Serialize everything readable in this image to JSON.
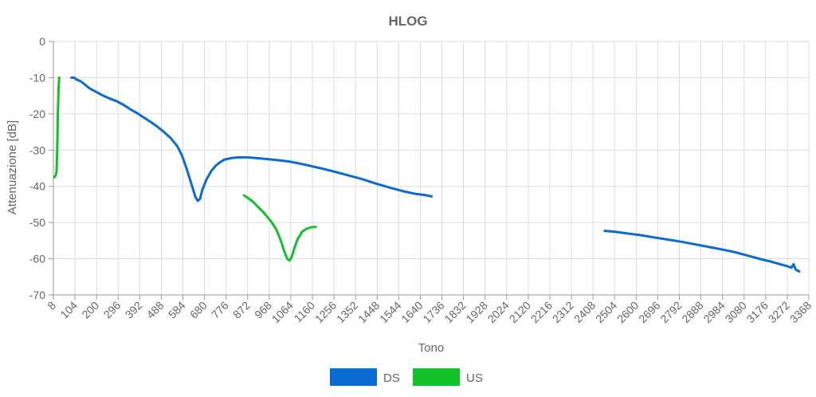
{
  "chart_data": {
    "type": "line",
    "title": "HLOG",
    "xlabel": "Tono",
    "ylabel": "Attenuazione [dB]",
    "xlim": [
      8,
      3368
    ],
    "ylim": [
      -70,
      0
    ],
    "x_ticks": [
      "8",
      "104",
      "200",
      "296",
      "392",
      "488",
      "584",
      "680",
      "776",
      "872",
      "968",
      "1064",
      "1160",
      "1256",
      "1352",
      "1448",
      "1544",
      "1640",
      "1736",
      "1832",
      "1928",
      "2024",
      "2120",
      "2216",
      "2312",
      "2408",
      "2504",
      "2600",
      "2696",
      "2792",
      "2888",
      "2984",
      "3080",
      "3176",
      "3272",
      "3368"
    ],
    "y_ticks": [
      "0",
      "-10",
      "-20",
      "-30",
      "-40",
      "-50",
      "-60",
      "-70"
    ],
    "grid": true,
    "legend": "bottom",
    "series": [
      {
        "name": "DS",
        "color": "#0a6cd0",
        "segments": [
          [
            [
              88,
              -10
            ],
            [
              100,
              -10
            ],
            [
              110,
              -10.5
            ],
            [
              130,
              -11
            ],
            [
              150,
              -12
            ],
            [
              170,
              -13
            ],
            [
              200,
              -14
            ],
            [
              230,
              -15
            ],
            [
              260,
              -15.8
            ],
            [
              290,
              -16.5
            ],
            [
              320,
              -17.5
            ],
            [
              350,
              -18.7
            ],
            [
              380,
              -19.8
            ],
            [
              410,
              -21
            ],
            [
              440,
              -22.2
            ],
            [
              470,
              -23.5
            ],
            [
              500,
              -25
            ],
            [
              530,
              -26.7
            ],
            [
              560,
              -29
            ],
            [
              580,
              -31.5
            ],
            [
              600,
              -35
            ],
            [
              620,
              -39
            ],
            [
              640,
              -43
            ],
            [
              650,
              -44
            ],
            [
              660,
              -43.5
            ],
            [
              670,
              -41
            ],
            [
              690,
              -38
            ],
            [
              710,
              -35.8
            ],
            [
              730,
              -34.3
            ],
            [
              750,
              -33.3
            ],
            [
              770,
              -32.6
            ],
            [
              800,
              -32.2
            ],
            [
              830,
              -32
            ],
            [
              870,
              -32
            ],
            [
              910,
              -32.2
            ],
            [
              960,
              -32.5
            ],
            [
              1010,
              -32.8
            ],
            [
              1060,
              -33.2
            ],
            [
              1110,
              -33.8
            ],
            [
              1160,
              -34.5
            ],
            [
              1210,
              -35.2
            ],
            [
              1260,
              -36
            ],
            [
              1320,
              -37
            ],
            [
              1380,
              -38
            ],
            [
              1440,
              -39.2
            ],
            [
              1500,
              -40.3
            ],
            [
              1560,
              -41.3
            ],
            [
              1620,
              -42.1
            ],
            [
              1660,
              -42.4
            ],
            [
              1690,
              -42.8
            ]
          ],
          [
            [
              2460,
              -52.3
            ],
            [
              2500,
              -52.5
            ],
            [
              2560,
              -53
            ],
            [
              2620,
              -53.5
            ],
            [
              2680,
              -54.1
            ],
            [
              2740,
              -54.7
            ],
            [
              2800,
              -55.3
            ],
            [
              2860,
              -56
            ],
            [
              2920,
              -56.7
            ],
            [
              2980,
              -57.4
            ],
            [
              3040,
              -58.2
            ],
            [
              3100,
              -59.2
            ],
            [
              3160,
              -60.2
            ],
            [
              3200,
              -60.8
            ],
            [
              3240,
              -61.5
            ],
            [
              3270,
              -62
            ],
            [
              3290,
              -62.5
            ],
            [
              3300,
              -61.5
            ],
            [
              3310,
              -63
            ],
            [
              3325,
              -63.5
            ]
          ]
        ]
      },
      {
        "name": "US",
        "color": "#12c02a",
        "segments": [
          [
            [
              12,
              -37.5
            ],
            [
              18,
              -37
            ],
            [
              22,
              -36
            ],
            [
              25,
              -30
            ],
            [
              28,
              -20
            ],
            [
              31,
              -13
            ],
            [
              34,
              -10
            ]
          ],
          [
            [
              856,
              -42.5
            ],
            [
              880,
              -43.5
            ],
            [
              900,
              -44.5
            ],
            [
              920,
              -45.8
            ],
            [
              940,
              -47
            ],
            [
              960,
              -48.5
            ],
            [
              980,
              -50
            ],
            [
              1000,
              -52
            ],
            [
              1020,
              -55
            ],
            [
              1035,
              -58
            ],
            [
              1048,
              -60
            ],
            [
              1058,
              -60.5
            ],
            [
              1068,
              -59.5
            ],
            [
              1080,
              -57
            ],
            [
              1095,
              -54.5
            ],
            [
              1115,
              -52.5
            ],
            [
              1135,
              -51.7
            ],
            [
              1155,
              -51.3
            ],
            [
              1175,
              -51.2
            ]
          ]
        ]
      }
    ]
  }
}
